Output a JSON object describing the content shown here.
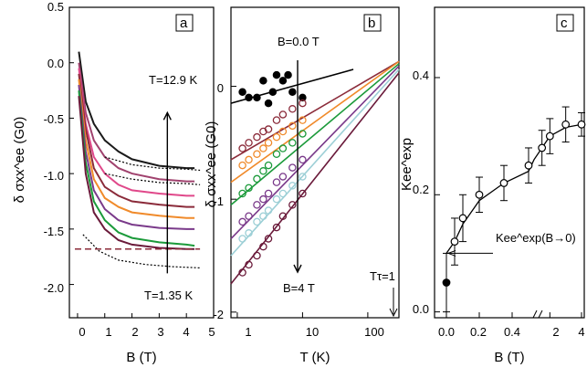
{
  "panels": [
    {
      "label": "a",
      "xlabel": "B (T)",
      "ylabel": "δ σxx^ee (G0)",
      "xticks": [
        "0",
        "1",
        "2",
        "3",
        "4",
        "5"
      ],
      "yticks": [
        "0.5",
        "0.0",
        "-0.5",
        "-1.0",
        "-1.5",
        "-2.0"
      ],
      "annotations": [
        "T=12.9 K",
        "T=1.35 K"
      ]
    },
    {
      "label": "b",
      "xlabel": "T (K)",
      "ylabel": "δ σxx^ee (G0)",
      "xticks": [
        "1",
        "10",
        "100"
      ],
      "yticks": [
        "0",
        "-1",
        "-2"
      ],
      "annotations": [
        "B=0.0 T",
        "B=4 T",
        "Tτ=1"
      ]
    },
    {
      "label": "c",
      "xlabel": "B (T)",
      "ylabel": "Kee^exp",
      "xticks": [
        "0.0",
        "0.2",
        "0.4",
        "2",
        "4"
      ],
      "yticks": [
        "0.4",
        "0.2",
        "0.0"
      ],
      "annotations": [
        "Kee^exp(B→0)"
      ]
    }
  ],
  "chart_data": [
    {
      "type": "line",
      "panel": "a",
      "xlim": [
        -0.3,
        5
      ],
      "ylim": [
        -2.3,
        0.5
      ],
      "series": [
        {
          "color": "#1a1a1a",
          "x": [
            0.05,
            0.3,
            0.6,
            1,
            1.5,
            2,
            3,
            4,
            4.3
          ],
          "y": [
            0.1,
            -0.35,
            -0.55,
            -0.7,
            -0.8,
            -0.87,
            -0.93,
            -0.95,
            -0.95
          ]
        },
        {
          "color": "#a0426e",
          "x": [
            0.05,
            0.3,
            0.6,
            1,
            1.5,
            2,
            3,
            4,
            4.3
          ],
          "y": [
            0.0,
            -0.45,
            -0.7,
            -0.85,
            -0.95,
            -1.0,
            -1.05,
            -1.07,
            -1.07
          ]
        },
        {
          "color": "#e0488a",
          "x": [
            0.05,
            0.3,
            0.6,
            1,
            1.5,
            2,
            3,
            4,
            4.3
          ],
          "y": [
            -0.05,
            -0.55,
            -0.85,
            -1.0,
            -1.1,
            -1.15,
            -1.18,
            -1.2,
            -1.2
          ]
        },
        {
          "color": "#8b2b3a",
          "x": [
            0.05,
            0.3,
            0.6,
            1,
            1.5,
            2,
            3,
            4,
            4.3
          ],
          "y": [
            -0.1,
            -0.6,
            -0.95,
            -1.12,
            -1.2,
            -1.25,
            -1.28,
            -1.3,
            -1.3
          ]
        },
        {
          "color": "#f08a2a",
          "x": [
            0.05,
            0.3,
            0.6,
            1,
            1.5,
            2,
            3,
            4,
            4.3
          ],
          "y": [
            -0.15,
            -0.7,
            -1.05,
            -1.22,
            -1.3,
            -1.35,
            -1.38,
            -1.4,
            -1.4
          ]
        },
        {
          "color": "#7a3a8a",
          "x": [
            0.05,
            0.3,
            0.6,
            1,
            1.5,
            2,
            3,
            4,
            4.3
          ],
          "y": [
            -0.2,
            -0.8,
            -1.15,
            -1.32,
            -1.42,
            -1.46,
            -1.49,
            -1.5,
            -1.5
          ]
        },
        {
          "color": "#1b9a3a",
          "x": [
            0.05,
            0.3,
            0.6,
            1,
            1.5,
            2,
            3,
            4,
            4.3
          ],
          "y": [
            -0.25,
            -0.9,
            -1.25,
            -1.42,
            -1.53,
            -1.58,
            -1.62,
            -1.64,
            -1.65
          ]
        },
        {
          "color": "#6a1a3a",
          "x": [
            0.05,
            0.3,
            0.6,
            1,
            1.5,
            2,
            3,
            4,
            4.3
          ],
          "y": [
            -0.3,
            -1.0,
            -1.35,
            -1.5,
            -1.6,
            -1.64,
            -1.67,
            -1.68,
            -1.68
          ]
        }
      ],
      "dotted": [
        {
          "x": [
            1,
            2,
            3,
            4,
            4.5
          ],
          "y": [
            -0.85,
            -0.92,
            -0.95,
            -0.96,
            -0.97
          ]
        },
        {
          "x": [
            1,
            2,
            3,
            4,
            4.5
          ],
          "y": [
            -1.0,
            -1.05,
            -1.08,
            -1.09,
            -1.1
          ]
        },
        {
          "x": [
            0.2,
            0.8,
            1.5,
            2.5,
            3.5,
            4.5
          ],
          "y": [
            -1.55,
            -1.7,
            -1.78,
            -1.82,
            -1.84,
            -1.85
          ]
        }
      ],
      "dashed": [
        {
          "x": [
            -0.1,
            4.5
          ],
          "y": [
            -1.68,
            -1.68
          ]
        }
      ]
    },
    {
      "type": "scatter",
      "panel": "b",
      "xscale": "log",
      "xlim": [
        0.8,
        300
      ],
      "ylim": [
        -2.05,
        0.7
      ],
      "series": [
        {
          "color": "#000",
          "filled": true,
          "x": [
            1.2,
            1.5,
            2,
            2.5,
            3,
            3.5,
            4,
            5,
            6,
            7,
            10
          ],
          "y": [
            -0.05,
            -0.1,
            -0.1,
            0.05,
            -0.15,
            -0.05,
            0.1,
            0.05,
            0.1,
            -0.05,
            -0.1
          ],
          "line": {
            "x": [
              0.8,
              60
            ],
            "y": [
              -0.15,
              0.15
            ]
          }
        },
        {
          "color": "#8b2b3a",
          "x": [
            1.2,
            1.5,
            2,
            2.5,
            3,
            4,
            5,
            7,
            10
          ],
          "y": [
            -0.55,
            -0.5,
            -0.45,
            -0.4,
            -0.38,
            -0.3,
            -0.25,
            -0.2,
            -0.15
          ],
          "line": {
            "x": [
              0.8,
              300
            ],
            "y": [
              -0.65,
              0.22
            ]
          }
        },
        {
          "color": "#f08a2a",
          "x": [
            1.2,
            1.5,
            2,
            2.5,
            3,
            4,
            5,
            7,
            10
          ],
          "y": [
            -0.7,
            -0.65,
            -0.6,
            -0.55,
            -0.5,
            -0.45,
            -0.4,
            -0.35,
            -0.3
          ],
          "line": {
            "x": [
              0.8,
              300
            ],
            "y": [
              -0.85,
              0.22
            ]
          }
        },
        {
          "color": "#1b9a3a",
          "x": [
            1.2,
            1.5,
            2,
            2.5,
            3,
            4,
            5,
            7,
            10
          ],
          "y": [
            -0.95,
            -0.9,
            -0.82,
            -0.75,
            -0.7,
            -0.6,
            -0.55,
            -0.5,
            -0.42
          ],
          "line": {
            "x": [
              0.8,
              300
            ],
            "y": [
              -1.05,
              0.2
            ]
          }
        },
        {
          "color": "#7a3a8a",
          "x": [
            1.2,
            1.5,
            2,
            2.5,
            3,
            4,
            5,
            7,
            10
          ],
          "y": [
            -1.2,
            -1.15,
            -1.05,
            -1.0,
            -0.95,
            -0.85,
            -0.8,
            -0.72,
            -0.65
          ],
          "line": {
            "x": [
              0.8,
              300
            ],
            "y": [
              -1.35,
              0.18
            ]
          }
        },
        {
          "color": "#9ccfd6",
          "x": [
            1.2,
            1.5,
            2,
            2.5,
            3,
            4,
            5,
            7,
            10
          ],
          "y": [
            -1.35,
            -1.3,
            -1.2,
            -1.15,
            -1.1,
            -1.0,
            -0.95,
            -0.88,
            -0.8
          ],
          "line": {
            "x": [
              0.8,
              300
            ],
            "y": [
              -1.5,
              0.15
            ]
          }
        },
        {
          "color": "#6a1a3a",
          "x": [
            1.2,
            1.5,
            2,
            2.5,
            3,
            4,
            5,
            7,
            10
          ],
          "y": [
            -1.65,
            -1.58,
            -1.5,
            -1.42,
            -1.35,
            -1.25,
            -1.15,
            -1.05,
            -0.95
          ],
          "line": {
            "x": [
              0.8,
              300
            ],
            "y": [
              -1.75,
              0.12
            ]
          }
        }
      ]
    },
    {
      "type": "scatter",
      "panel": "c",
      "ylim": [
        -0.01,
        0.52
      ],
      "points": [
        {
          "x": 0.0,
          "y": 0.05,
          "err": 0.05,
          "filled": true
        },
        {
          "x": 0.05,
          "y": 0.12,
          "err": 0.04
        },
        {
          "x": 0.1,
          "y": 0.16,
          "err": 0.04
        },
        {
          "x": 0.2,
          "y": 0.2,
          "err": 0.03
        },
        {
          "x": 0.35,
          "y": 0.22,
          "err": 0.03
        },
        {
          "x": 0.5,
          "y": 0.25,
          "err": 0.03
        },
        {
          "x": 1.5,
          "y": 0.28,
          "err": 0.03
        },
        {
          "x": 2,
          "y": 0.3,
          "err": 0.03
        },
        {
          "x": 3,
          "y": 0.32,
          "err": 0.03
        },
        {
          "x": 4,
          "y": 0.32,
          "err": 0.02
        }
      ],
      "fit": {
        "x": [
          0,
          0.05,
          0.1,
          0.2,
          0.35,
          0.5,
          1,
          1.5,
          2,
          3,
          4
        ],
        "y": [
          0.1,
          0.12,
          0.15,
          0.19,
          0.22,
          0.24,
          0.26,
          0.28,
          0.3,
          0.315,
          0.32
        ]
      },
      "limit_y": 0.1
    }
  ]
}
